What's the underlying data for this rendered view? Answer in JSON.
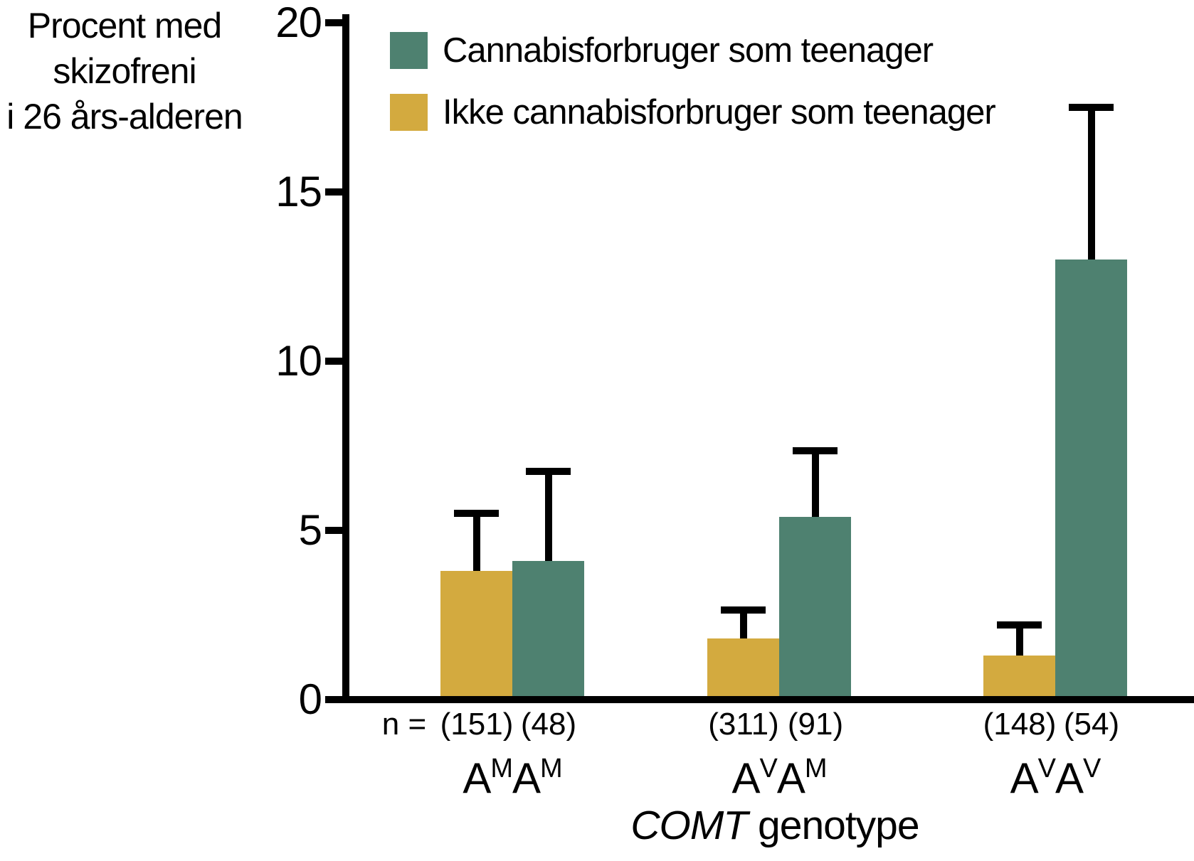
{
  "figure": {
    "background": "#ffffff"
  },
  "y_axis_title": {
    "lines": [
      "Procent med",
      "skizofreni",
      "i 26 års-alderen"
    ]
  },
  "x_axis_label": {
    "italic_part": "COMT",
    "regular_part": " genotype"
  },
  "n_prefix": "n =",
  "colors": {
    "cannabis_green": "#4e8170",
    "non_cannabis_gold": "#d3aa3f",
    "axis_black": "#000000"
  },
  "chart_data": {
    "type": "bar",
    "title": "",
    "ylabel": "Procent med skizofreni i 26 års-alderen",
    "xlabel": "COMT genotype",
    "ylim": [
      0,
      20
    ],
    "yticks": [
      0,
      5,
      10,
      15,
      20
    ],
    "ytick_labels": [
      "0",
      "5",
      "10",
      "15",
      "20"
    ],
    "grid": false,
    "legend_position": "top-left-inside",
    "error_bars": "upper-only",
    "categories": [
      "AMAM",
      "AVAM",
      "AVAV"
    ],
    "categories_display": [
      [
        {
          "t": "A"
        },
        {
          "t": "M",
          "sup": true
        },
        {
          "t": "A"
        },
        {
          "t": "M",
          "sup": true
        }
      ],
      [
        {
          "t": "A"
        },
        {
          "t": "V",
          "sup": true
        },
        {
          "t": "A"
        },
        {
          "t": "M",
          "sup": true
        }
      ],
      [
        {
          "t": "A"
        },
        {
          "t": "V",
          "sup": true
        },
        {
          "t": "A"
        },
        {
          "t": "V",
          "sup": true
        }
      ]
    ],
    "series": [
      {
        "name": "Cannabisforbruger som teenager",
        "color": "#4e8170",
        "bar_position": "right",
        "values": [
          4.1,
          5.4,
          13.0
        ],
        "errors_up": [
          2.65,
          1.95,
          4.5
        ],
        "n": [
          48,
          91,
          54
        ],
        "n_labels": [
          "(48)",
          "(91)",
          "(54)"
        ]
      },
      {
        "name": "Ikke cannabisforbruger som teenager",
        "color": "#d3aa3f",
        "bar_position": "left",
        "values": [
          3.8,
          1.8,
          1.3
        ],
        "errors_up": [
          1.7,
          0.85,
          0.9
        ],
        "n": [
          151,
          311,
          148
        ],
        "n_labels": [
          "(151)",
          "(311)",
          "(148)"
        ]
      }
    ]
  }
}
